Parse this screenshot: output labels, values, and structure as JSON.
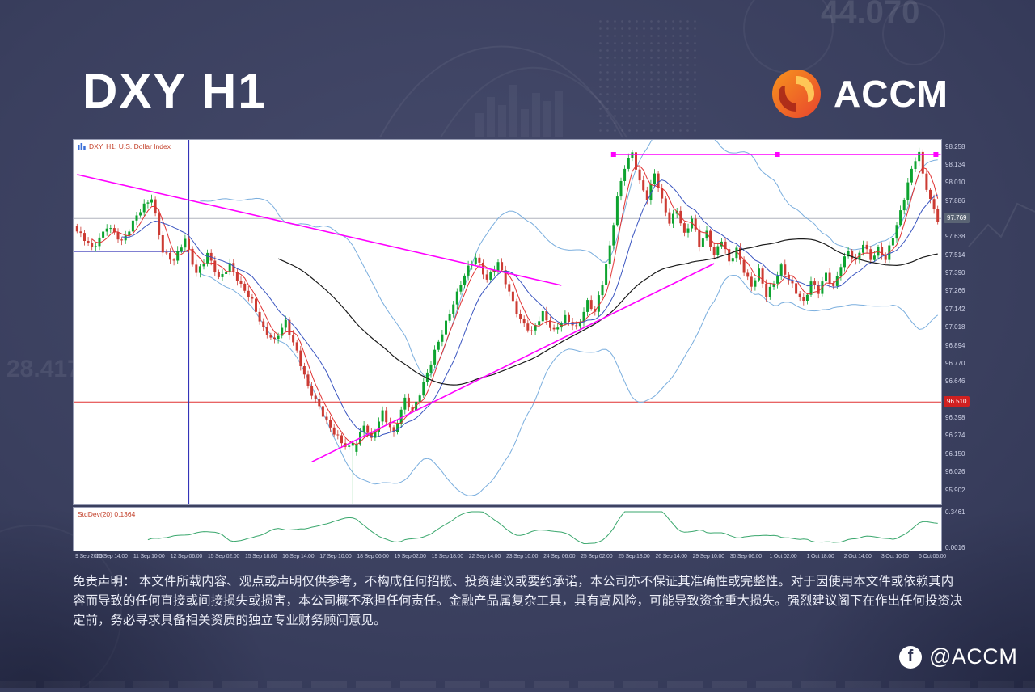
{
  "page": {
    "title": "DXY H1",
    "brand": "ACCM",
    "social_handle": "@ACCM",
    "social_icon_letter": "f"
  },
  "background": {
    "numbers": [
      "44.070",
      "28.417"
    ]
  },
  "disclaimer": "免责声明： 本文件所载内容、观点或声明仅供参考，不构成任何招揽、投资建议或要约承诺，本公司亦不保证其准确性或完整性。对于因使用本文件或依赖其内容而导致的任何直接或间接损失或损害，本公司概不承担任何责任。金融产品属复杂工具，具有高风险，可能导致资金重大损失。强烈建议阁下在作出任何投资决定前，务必寻求具备相关资质的独立专业财务顾问意见。",
  "chart_data": {
    "type": "candlestick",
    "title": "DXY, H1: U.S. Dollar Index",
    "symbol": "DXY",
    "timeframe": "H1",
    "candle_count": 232,
    "price_axis": {
      "labels": [
        "98.258",
        "98.134",
        "98.010",
        "97.886",
        "97.762",
        "97.638",
        "97.514",
        "97.390",
        "97.266",
        "97.142",
        "97.018",
        "96.894",
        "96.770",
        "96.646",
        "96.522",
        "96.398",
        "96.274",
        "96.150",
        "96.026",
        "95.902"
      ]
    },
    "time_axis_labels": [
      "9 Sep 2025",
      "10 Sep 14:00",
      "11 Sep 10:00",
      "12 Sep 06:00",
      "15 Sep 02:00",
      "15 Sep 18:00",
      "16 Sep 14:00",
      "17 Sep 10:00",
      "18 Sep 06:00",
      "19 Sep 02:00",
      "19 Sep 18:00",
      "22 Sep 14:00",
      "23 Sep 10:00",
      "24 Sep 06:00",
      "25 Sep 02:00",
      "25 Sep 18:00",
      "26 Sep 14:00",
      "29 Sep 10:00",
      "30 Sep 06:00",
      "1 Oct 02:00",
      "1 Oct 18:00",
      "2 Oct 14:00",
      "3 Oct 10:00",
      "6 Oct 06:00"
    ],
    "price_path": [
      [
        0,
        97.68
      ],
      [
        4,
        97.56
      ],
      [
        8,
        97.72
      ],
      [
        12,
        97.6
      ],
      [
        16,
        97.8
      ],
      [
        20,
        97.9
      ],
      [
        23,
        97.55
      ],
      [
        26,
        97.48
      ],
      [
        29,
        97.62
      ],
      [
        32,
        97.4
      ],
      [
        35,
        97.52
      ],
      [
        38,
        97.35
      ],
      [
        41,
        97.46
      ],
      [
        44,
        97.3
      ],
      [
        47,
        97.2
      ],
      [
        50,
        97.02
      ],
      [
        53,
        96.92
      ],
      [
        56,
        97.06
      ],
      [
        59,
        96.86
      ],
      [
        62,
        96.6
      ],
      [
        65,
        96.48
      ],
      [
        68,
        96.34
      ],
      [
        71,
        96.22
      ],
      [
        74,
        96.18
      ],
      [
        77,
        96.36
      ],
      [
        79,
        96.24
      ],
      [
        82,
        96.44
      ],
      [
        85,
        96.3
      ],
      [
        88,
        96.52
      ],
      [
        90,
        96.44
      ],
      [
        92,
        96.58
      ],
      [
        95,
        96.78
      ],
      [
        98,
        96.98
      ],
      [
        101,
        97.2
      ],
      [
        104,
        97.38
      ],
      [
        107,
        97.5
      ],
      [
        110,
        97.36
      ],
      [
        113,
        97.46
      ],
      [
        116,
        97.26
      ],
      [
        119,
        97.08
      ],
      [
        122,
        96.98
      ],
      [
        125,
        97.12
      ],
      [
        128,
        97.0
      ],
      [
        131,
        97.08
      ],
      [
        134,
        97.02
      ],
      [
        137,
        97.2
      ],
      [
        139,
        97.12
      ],
      [
        141,
        97.32
      ],
      [
        143,
        97.58
      ],
      [
        145,
        97.92
      ],
      [
        147,
        98.12
      ],
      [
        149,
        98.21
      ],
      [
        151,
        98.02
      ],
      [
        153,
        97.92
      ],
      [
        155,
        98.08
      ],
      [
        157,
        97.88
      ],
      [
        159,
        97.74
      ],
      [
        161,
        97.84
      ],
      [
        163,
        97.66
      ],
      [
        165,
        97.76
      ],
      [
        167,
        97.58
      ],
      [
        169,
        97.68
      ],
      [
        171,
        97.52
      ],
      [
        173,
        97.62
      ],
      [
        175,
        97.46
      ],
      [
        177,
        97.56
      ],
      [
        179,
        97.42
      ],
      [
        181,
        97.3
      ],
      [
        183,
        97.4
      ],
      [
        185,
        97.24
      ],
      [
        187,
        97.34
      ],
      [
        189,
        97.44
      ],
      [
        191,
        97.34
      ],
      [
        193,
        97.26
      ],
      [
        195,
        97.2
      ],
      [
        197,
        97.34
      ],
      [
        199,
        97.26
      ],
      [
        201,
        97.38
      ],
      [
        203,
        97.3
      ],
      [
        205,
        97.46
      ],
      [
        207,
        97.54
      ],
      [
        209,
        97.46
      ],
      [
        211,
        97.6
      ],
      [
        213,
        97.5
      ],
      [
        215,
        97.56
      ],
      [
        217,
        97.48
      ],
      [
        219,
        97.64
      ],
      [
        221,
        97.82
      ],
      [
        223,
        98.02
      ],
      [
        225,
        98.17
      ],
      [
        226,
        98.21
      ],
      [
        227,
        98.06
      ],
      [
        229,
        97.9
      ],
      [
        231,
        97.77
      ]
    ],
    "down_spike": {
      "t": 74,
      "low": 95.62
    },
    "levels": {
      "current_price_line": {
        "price": 97.769,
        "label": "97.769",
        "line_color": "#b0b3bd",
        "badge_color": "#5a6474"
      },
      "support_line": {
        "price": 96.51,
        "label": "96.510",
        "line_color": "#e03131",
        "badge_color": "#d02020"
      },
      "lower_boundary_line": {
        "price": 95.8,
        "line_color": "#e0622a"
      }
    },
    "trendlines": [
      {
        "name": "descending-trendline",
        "t1": 0,
        "p1": 98.07,
        "t2": 130,
        "p2": 97.31,
        "color": "#ff00ff"
      },
      {
        "name": "ascending-trendline",
        "t1": 63,
        "p1": 96.1,
        "t2": 171,
        "p2": 97.46,
        "color": "#ff00ff"
      }
    ],
    "resistance_hline": {
      "price": 98.208,
      "t1": 144,
      "t2": 231.8,
      "handle_ts": [
        144,
        188,
        230.5
      ],
      "color": "#ff00ff"
    },
    "vertical_line": {
      "t": 30,
      "color": "#3434b8"
    },
    "partial_hline": {
      "price": 97.543,
      "t1": 0,
      "t2": 30,
      "color": "#3434b8"
    },
    "indicator": {
      "name": "StdDev",
      "period": 20,
      "label": "StdDev(20) 0.1364",
      "value": "0.1364",
      "scale_max": 0.3461,
      "scale_min": 0.0016,
      "max_label": "0.3461",
      "min_label": "0.0016"
    },
    "ma_periods": {
      "fast": 5,
      "mid": 13,
      "slow": 55
    },
    "bollinger": {
      "period": 34,
      "mult": 2
    },
    "colors": {
      "up": "#0da32f",
      "down": "#cc3b33",
      "ma_fast": "#e03131",
      "ma_mid": "#3a55c0",
      "ma_slow": "#1a1a1a",
      "bollinger": "#7aaede",
      "indicator": "#3aa76d"
    }
  }
}
